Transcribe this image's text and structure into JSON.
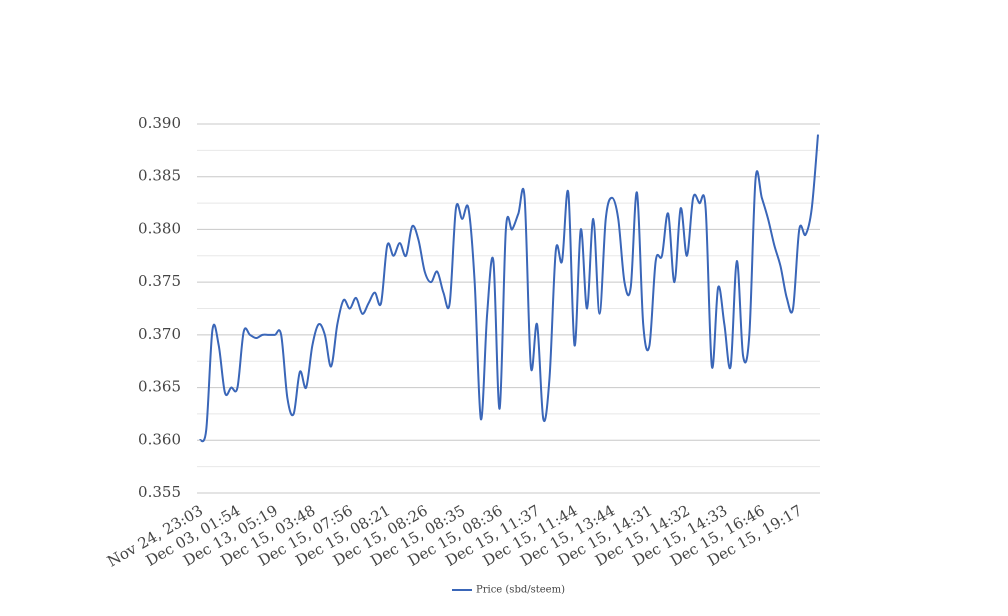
{
  "chart_data": {
    "type": "line",
    "categories": [
      "Nov 24, 23:03",
      null,
      null,
      null,
      null,
      null,
      "Dec 03, 01:54",
      null,
      null,
      null,
      null,
      null,
      "Dec 13, 05:19",
      null,
      null,
      null,
      null,
      null,
      "Dec 15, 03:48",
      null,
      null,
      null,
      null,
      null,
      "Dec 15, 07:56",
      null,
      null,
      null,
      null,
      null,
      "Dec 15, 08:21",
      null,
      null,
      null,
      null,
      null,
      "Dec 15, 08:26",
      null,
      null,
      null,
      null,
      null,
      "Dec 15, 08:35",
      null,
      null,
      null,
      null,
      null,
      "Dec 15, 08:36",
      null,
      null,
      null,
      null,
      null,
      "Dec 15, 11:37",
      null,
      null,
      null,
      null,
      null,
      "Dec 15, 11:44",
      null,
      null,
      null,
      null,
      null,
      "Dec 15, 13:44",
      null,
      null,
      null,
      null,
      null,
      "Dec 15, 14:31",
      null,
      null,
      null,
      null,
      null,
      "Dec 15, 14:32",
      null,
      null,
      null,
      null,
      null,
      "Dec 15, 14:33",
      null,
      null,
      null,
      null,
      null,
      "Dec 15, 16:46",
      null,
      null,
      null,
      null,
      null,
      "Dec 15, 19:17",
      null,
      null,
      null
    ],
    "series": [
      {
        "name": "Price (sbd/steem)",
        "color": "#3a66b8",
        "values": [
          0.36,
          0.361,
          0.3705,
          0.369,
          0.3645,
          0.365,
          0.365,
          0.3703,
          0.37,
          0.3697,
          0.37,
          0.37,
          0.37,
          0.37,
          0.364,
          0.3625,
          0.3665,
          0.365,
          0.369,
          0.371,
          0.37,
          0.367,
          0.371,
          0.3733,
          0.3725,
          0.3735,
          0.372,
          0.373,
          0.374,
          0.373,
          0.3785,
          0.3775,
          0.3787,
          0.3775,
          0.3803,
          0.379,
          0.376,
          0.375,
          0.376,
          0.374,
          0.373,
          0.382,
          0.381,
          0.382,
          0.375,
          0.362,
          0.372,
          0.377,
          0.363,
          0.38,
          0.38,
          0.3815,
          0.383,
          0.367,
          0.371,
          0.362,
          0.366,
          0.378,
          0.377,
          0.3835,
          0.369,
          0.38,
          0.3725,
          0.381,
          0.372,
          0.381,
          0.383,
          0.381,
          0.375,
          0.3745,
          0.3835,
          0.371,
          0.369,
          0.377,
          0.3775,
          0.3815,
          0.375,
          0.382,
          0.3775,
          0.383,
          0.3825,
          0.382,
          0.367,
          0.3745,
          0.371,
          0.367,
          0.377,
          0.368,
          0.37,
          0.3848,
          0.383,
          0.381,
          0.3785,
          0.3765,
          0.3735,
          0.3725,
          0.38,
          0.3795,
          0.382,
          0.389
        ]
      }
    ],
    "ylim": [
      0.355,
      0.39
    ],
    "yticks": [
      0.355,
      {
        "value": 0.36,
        "label": "0.360"
      },
      0.365,
      {
        "value": 0.37,
        "label": "0.370"
      },
      0.375,
      {
        "value": 0.38,
        "label": "0.380"
      },
      0.385,
      {
        "value": 0.39,
        "label": "0.390"
      }
    ],
    "minor_yticks": [
      0.3575,
      0.3625,
      0.3675,
      0.3725,
      0.3775,
      0.3825,
      0.3875
    ],
    "grid": true,
    "smooth": true,
    "legend": "bottom"
  }
}
